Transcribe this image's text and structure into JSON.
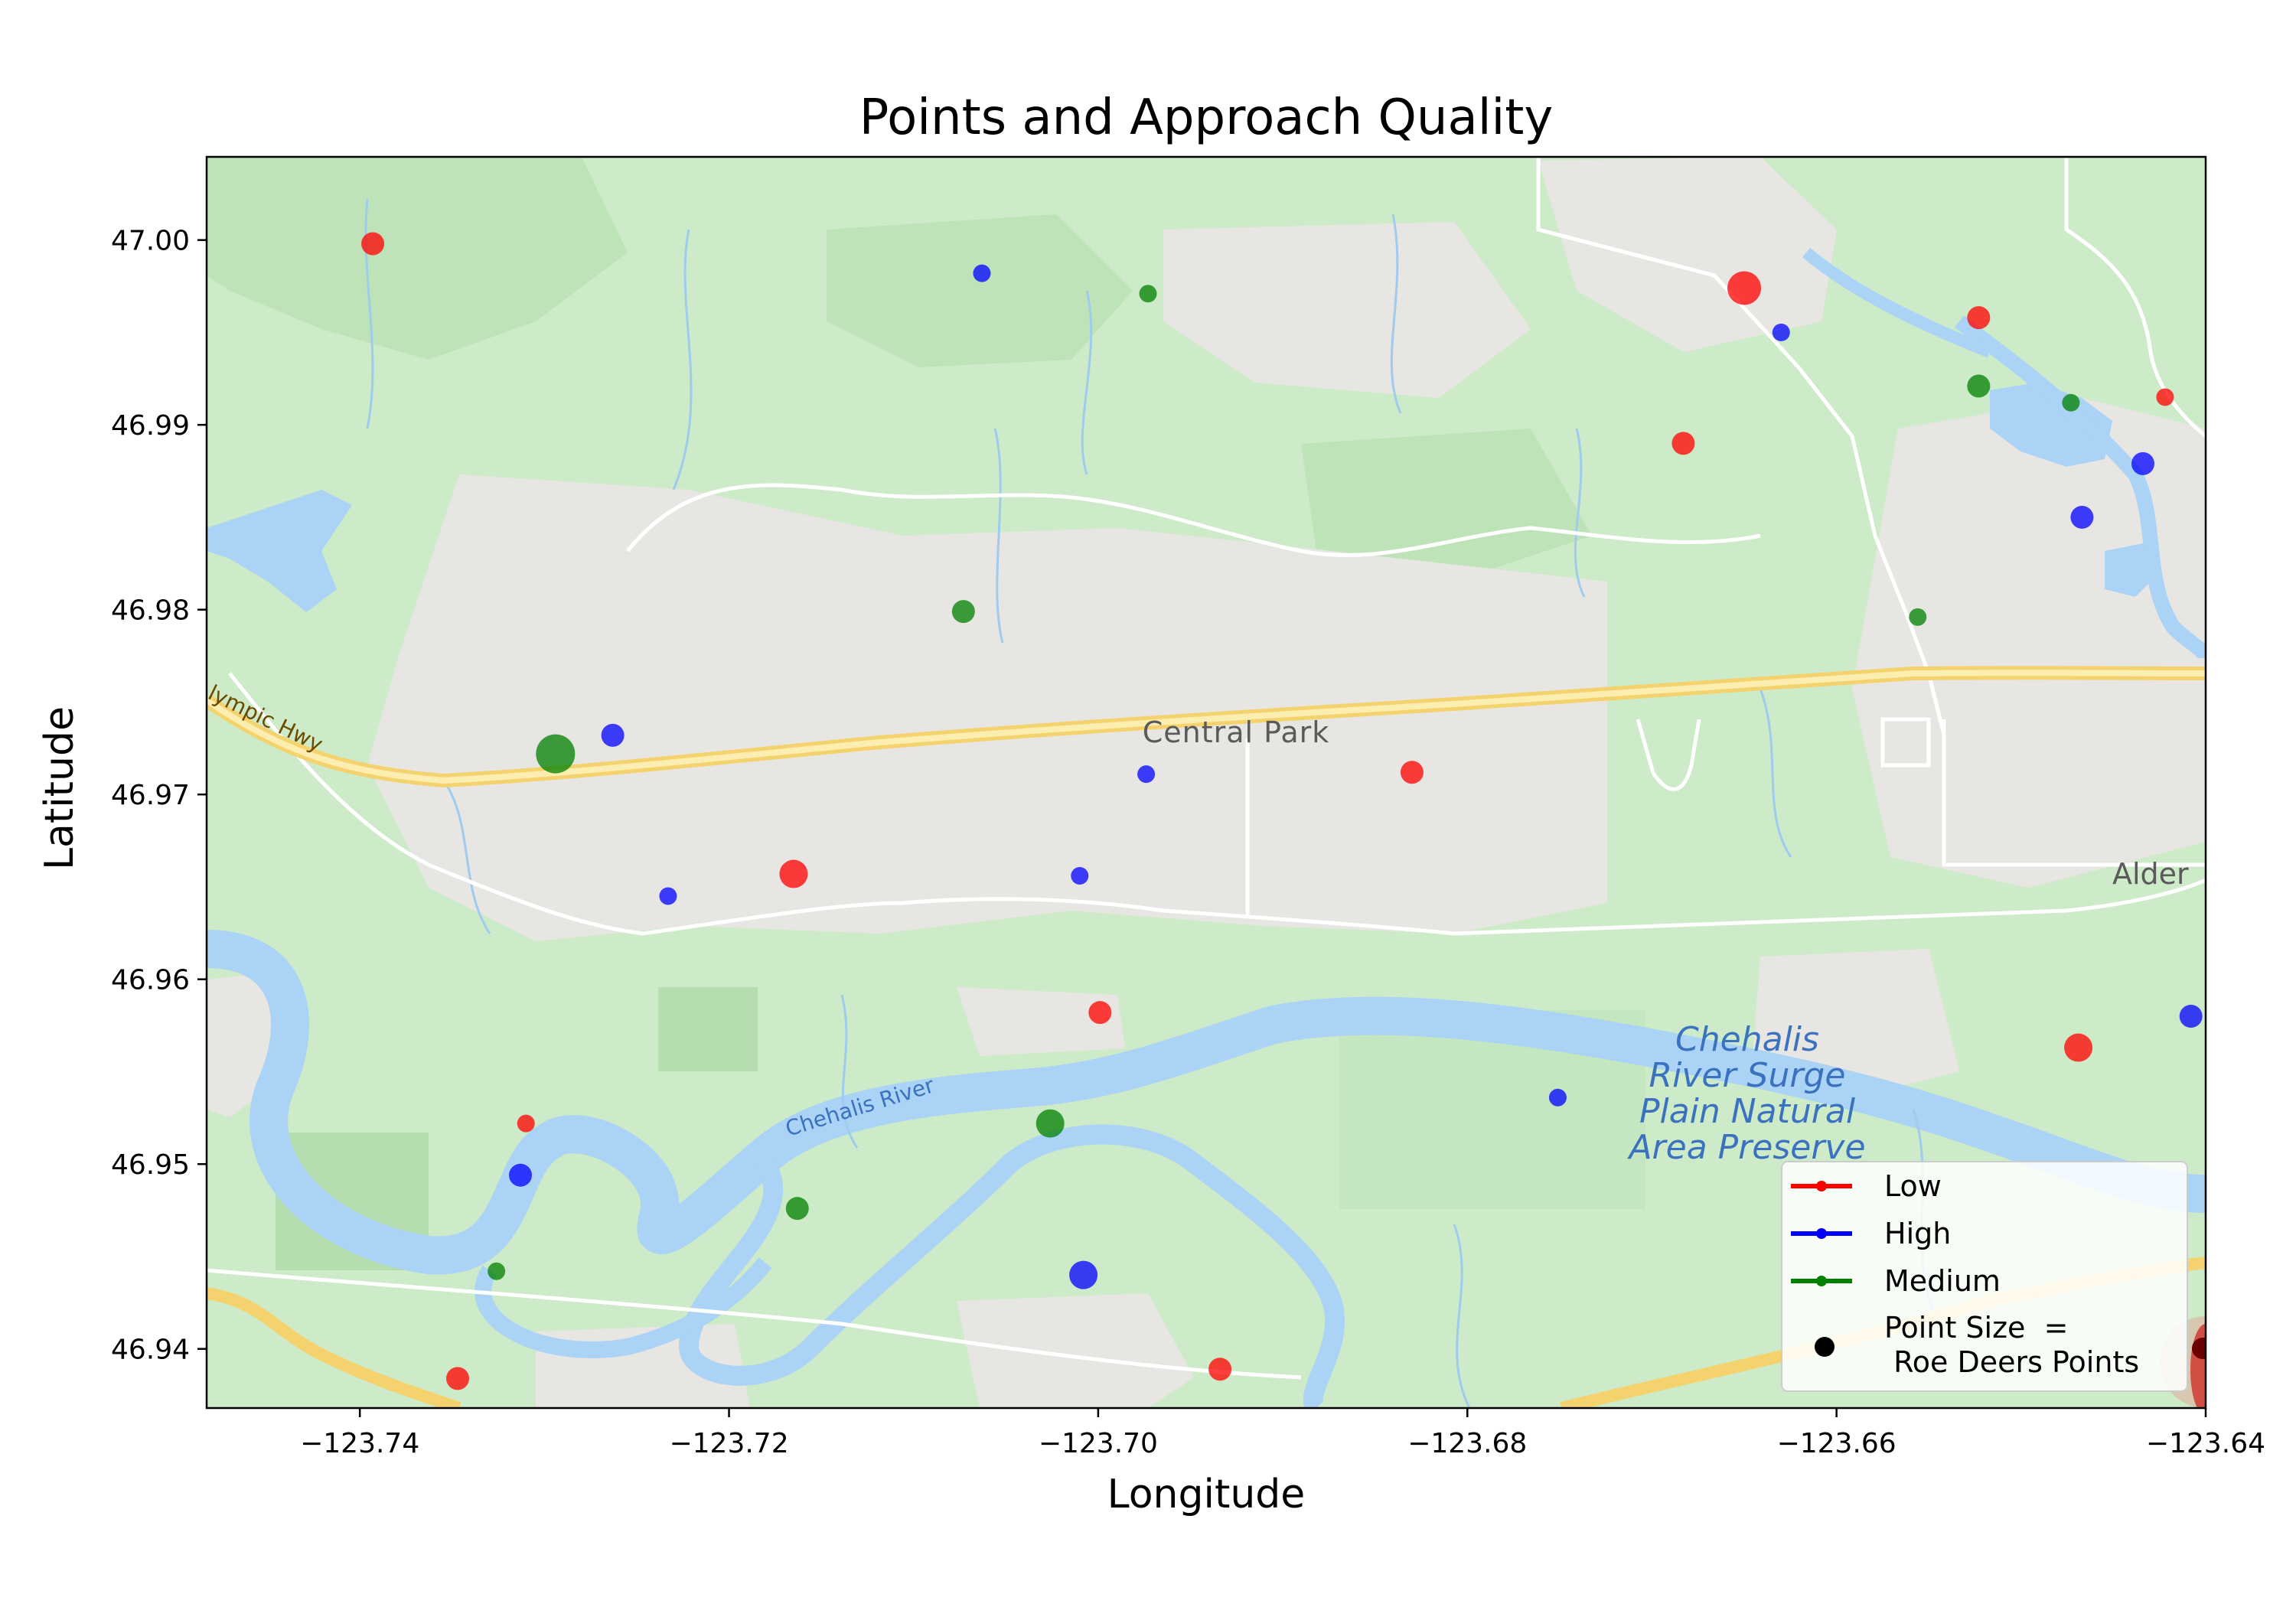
{
  "chart_data": {
    "type": "scatter",
    "title": "Points and Approach Quality",
    "xlabel": "Longitude",
    "ylabel": "Latitude",
    "xlim": [
      -123.7483,
      -123.64
    ],
    "ylim": [
      46.9368,
      47.0045
    ],
    "xticks": [
      -123.74,
      -123.72,
      -123.7,
      -123.68,
      -123.66,
      -123.64
    ],
    "xtick_labels": [
      "−123.74",
      "−123.72",
      "−123.70",
      "−123.68",
      "−123.66",
      "−123.64"
    ],
    "yticks": [
      46.94,
      46.95,
      46.96,
      46.97,
      46.98,
      46.99,
      47.0
    ],
    "ytick_labels": [
      "46.94",
      "46.95",
      "46.96",
      "46.97",
      "46.98",
      "46.99",
      "47.00"
    ],
    "grid": false,
    "legend_position": "bottom-right",
    "series": [
      {
        "name": "Low",
        "color": "#ff0000",
        "points": [
          {
            "x": -123.7393,
            "y": 46.9998,
            "size": 2
          },
          {
            "x": -123.665,
            "y": 46.9974,
            "size": 4
          },
          {
            "x": -123.6523,
            "y": 46.9958,
            "size": 2
          },
          {
            "x": -123.6422,
            "y": 46.9915,
            "size": 1
          },
          {
            "x": -123.6683,
            "y": 46.989,
            "size": 2
          },
          {
            "x": -123.683,
            "y": 46.9712,
            "size": 2
          },
          {
            "x": -123.7165,
            "y": 46.9657,
            "size": 3
          },
          {
            "x": -123.6999,
            "y": 46.9582,
            "size": 2
          },
          {
            "x": -123.6469,
            "y": 46.9563,
            "size": 3
          },
          {
            "x": -123.731,
            "y": 46.9522,
            "size": 1
          },
          {
            "x": -123.7347,
            "y": 46.9384,
            "size": 2
          },
          {
            "x": -123.6934,
            "y": 46.9389,
            "size": 2
          }
        ]
      },
      {
        "name": "High",
        "color": "#0000ff",
        "points": [
          {
            "x": -123.7063,
            "y": 46.9982,
            "size": 1
          },
          {
            "x": -123.663,
            "y": 46.995,
            "size": 1
          },
          {
            "x": -123.6434,
            "y": 46.9879,
            "size": 2
          },
          {
            "x": -123.6467,
            "y": 46.985,
            "size": 2
          },
          {
            "x": -123.7263,
            "y": 46.9732,
            "size": 2
          },
          {
            "x": -123.6974,
            "y": 46.9711,
            "size": 1
          },
          {
            "x": -123.7233,
            "y": 46.9645,
            "size": 1
          },
          {
            "x": -123.701,
            "y": 46.9656,
            "size": 1
          },
          {
            "x": -123.6408,
            "y": 46.958,
            "size": 2
          },
          {
            "x": -123.6751,
            "y": 46.9536,
            "size": 1
          },
          {
            "x": -123.7313,
            "y": 46.9494,
            "size": 2
          },
          {
            "x": -123.7008,
            "y": 46.944,
            "size": 3
          }
        ]
      },
      {
        "name": "Medium",
        "color": "#008000",
        "points": [
          {
            "x": -123.6973,
            "y": 46.9971,
            "size": 1
          },
          {
            "x": -123.6523,
            "y": 46.9921,
            "size": 2
          },
          {
            "x": -123.6473,
            "y": 46.9912,
            "size": 1
          },
          {
            "x": -123.7073,
            "y": 46.9799,
            "size": 2
          },
          {
            "x": -123.6556,
            "y": 46.9796,
            "size": 1
          },
          {
            "x": -123.7294,
            "y": 46.9722,
            "size": 5
          },
          {
            "x": -123.7026,
            "y": 46.9522,
            "size": 3
          },
          {
            "x": -123.7163,
            "y": 46.9476,
            "size": 2
          },
          {
            "x": -123.7326,
            "y": 46.9442,
            "size": 1
          }
        ]
      }
    ],
    "legend": {
      "entries": [
        "Low",
        "High",
        "Medium"
      ],
      "size_entry": "Point Size  =",
      "size_entry_line2": " Roe Deers Points"
    }
  },
  "map_labels": {
    "park": "Central Park",
    "highway": "lympic Hwy",
    "river": "Chehalis River",
    "preserve": [
      "Chehalis",
      "River Surge",
      "Plain Natural",
      "Area Preserve"
    ],
    "town": "Alder"
  },
  "colors": {
    "map_green": "#cdebc8",
    "map_grey": "#e8e6e3",
    "water": "#aad3f5",
    "road": "#f7dd7a"
  }
}
